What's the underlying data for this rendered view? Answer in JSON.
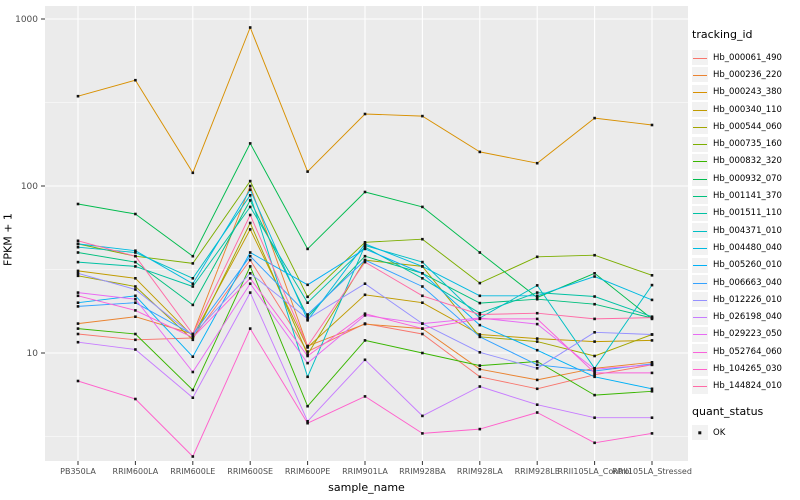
{
  "figure": {
    "y_axis_title": "FPKM + 1",
    "x_axis_title": "sample_name",
    "panel_bg": "#EBEBEB",
    "grid_color": "#FFFFFF",
    "tick_label_color": "#4D4D4D",
    "point_color": "#111111"
  },
  "legend": {
    "tracking_title": "tracking_id",
    "quant_title": "quant_status",
    "quant_value": "OK"
  },
  "chart_data": {
    "type": "line",
    "title": "",
    "xlabel": "sample_name",
    "ylabel": "FPKM + 1",
    "y_scale": "log10",
    "ylim": [
      2.2,
      1200
    ],
    "y_ticks": [
      1000,
      100,
      10
    ],
    "y_minor_ticks": [
      316.2,
      31.62,
      3.162
    ],
    "grid": true,
    "legend_position": "right",
    "point_marker": "small black square (quant_status OK)",
    "categories": [
      "PB350LA",
      "RRIM600LA",
      "RRIM600LE",
      "RRIM600SE",
      "RRIM600PE",
      "RRIM901LA",
      "RRIM928BA",
      "RRIM928LA",
      "RRIM928LE",
      "RRII105LA_Control",
      "RRII105LA_Stressed"
    ],
    "series": [
      {
        "name": "Hb_000061_490",
        "color": "#F8766D",
        "values": [
          13,
          12,
          12.3,
          36,
          10.2,
          15,
          13,
          7.2,
          6.1,
          7.4,
          8.5
        ]
      },
      {
        "name": "Hb_000236_220",
        "color": "#EA8331",
        "values": [
          15,
          16.5,
          13,
          100,
          11,
          14.9,
          14,
          8,
          6.9,
          8.1,
          8.8
        ]
      },
      {
        "name": "Hb_000243_380",
        "color": "#D89000",
        "values": [
          345,
          430,
          120,
          890,
          122,
          270,
          262,
          160,
          137,
          255,
          232
        ]
      },
      {
        "name": "Hb_000340_110",
        "color": "#C09B00",
        "values": [
          31,
          28,
          12.6,
          55,
          10.8,
          22.3,
          20,
          12.9,
          12.2,
          11.7,
          11.9
        ]
      },
      {
        "name": "Hb_000544_060",
        "color": "#A3A500",
        "values": [
          29,
          25,
          12,
          60,
          9.8,
          36,
          33,
          12.5,
          11.7,
          9.6,
          12.9
        ]
      },
      {
        "name": "Hb_000735_160",
        "color": "#7CAE00",
        "values": [
          45,
          38,
          34.4,
          107,
          21.7,
          46,
          48,
          26.2,
          37.7,
          38.5,
          29.2
        ]
      },
      {
        "name": "Hb_000832_320",
        "color": "#39B600",
        "values": [
          14,
          13,
          6,
          33,
          4.8,
          11.9,
          10,
          8.4,
          8.9,
          5.6,
          5.9
        ]
      },
      {
        "name": "Hb_000932_070",
        "color": "#00BB4E",
        "values": [
          78,
          68,
          38,
          180,
          42,
          92,
          75,
          40,
          21.5,
          30,
          16
        ]
      },
      {
        "name": "Hb_001141_370",
        "color": "#00BF7D",
        "values": [
          40,
          35,
          19.4,
          82,
          16.5,
          38,
          30,
          19.9,
          21,
          19.6,
          16.2
        ]
      },
      {
        "name": "Hb_001511_110",
        "color": "#00C1A3",
        "values": [
          35,
          33,
          25,
          75,
          20,
          43,
          28,
          17.3,
          23,
          21.8,
          16.5
        ]
      },
      {
        "name": "Hb_004371_010",
        "color": "#00BFC4",
        "values": [
          43,
          40,
          28,
          88,
          7.2,
          44,
          35,
          16.2,
          25.4,
          8.1,
          25.5
        ]
      },
      {
        "name": "Hb_004480_040",
        "color": "#00BAE0",
        "values": [
          45,
          41,
          26,
          95,
          15.7,
          45,
          33,
          22,
          22,
          28.7,
          20.8
        ]
      },
      {
        "name": "Hb_005260_010",
        "color": "#00B0F6",
        "values": [
          20,
          22,
          9.5,
          40,
          25.6,
          42,
          30,
          14.7,
          10.4,
          7.2,
          6.1
        ]
      },
      {
        "name": "Hb_006663_040",
        "color": "#35A2FF",
        "values": [
          19,
          20,
          12.9,
          38,
          17,
          36,
          25,
          12.5,
          8.5,
          7.8,
          8.6
        ]
      },
      {
        "name": "Hb_012226_010",
        "color": "#9590FF",
        "values": [
          30,
          24,
          12.8,
          30,
          16,
          26,
          15,
          10.1,
          8.1,
          13.3,
          12.9
        ]
      },
      {
        "name": "Hb_026198_040",
        "color": "#C77CFF",
        "values": [
          11.6,
          10.5,
          5.4,
          23,
          3.9,
          9.1,
          4.2,
          6.3,
          4.9,
          4.1,
          4.1
        ]
      },
      {
        "name": "Hb_029223_050",
        "color": "#E76BF3",
        "values": [
          23,
          21,
          7.7,
          26,
          8.7,
          16.8,
          15,
          16.2,
          14.9,
          8,
          8.5
        ]
      },
      {
        "name": "Hb_052764_060",
        "color": "#FA62DB",
        "values": [
          22,
          18,
          12.4,
          28,
          9.6,
          17.2,
          14,
          16,
          16,
          7.6,
          7.6
        ]
      },
      {
        "name": "Hb_104265_030",
        "color": "#FF61CC",
        "values": [
          6.8,
          5.3,
          2.4,
          14,
          3.8,
          5.5,
          3.3,
          3.5,
          4.4,
          2.9,
          3.3
        ]
      },
      {
        "name": "Hb_144824_010",
        "color": "#FF6BA6",
        "values": [
          47,
          38,
          13,
          67,
          11,
          35,
          22,
          17,
          17.3,
          16,
          16.3
        ]
      }
    ]
  }
}
